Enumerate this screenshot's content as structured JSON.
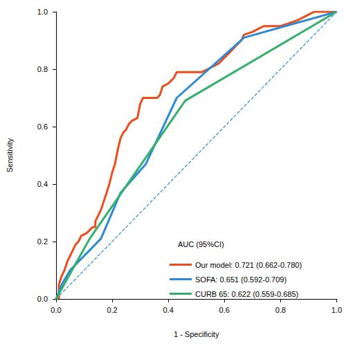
{
  "chart_data": {
    "type": "line",
    "x_label": "1 - Specificity",
    "y_label": "Sensitivity",
    "legend_title": "AUC (95%CI)",
    "legend": "lower right",
    "grid": false,
    "xlim": [
      0,
      1
    ],
    "ylim": [
      0,
      1
    ],
    "xticks": [
      {
        "value": 0,
        "label": "0.0"
      },
      0.2,
      0.4,
      0.6,
      0.8,
      {
        "value": 1,
        "label": "1.0"
      }
    ],
    "yticks": [
      {
        "value": 0,
        "label": "0.0"
      },
      0.2,
      0.4,
      0.6,
      0.8,
      {
        "value": 1,
        "label": "1.0"
      }
    ],
    "reference_line": {
      "x": [
        0,
        1
      ],
      "y": [
        0,
        1
      ],
      "color": "#2a8ad8",
      "line_style": "dashed"
    },
    "series": [
      {
        "name": "Our model: 0.721 (0.662-0.780)",
        "color": "#ee4a1b",
        "line_style": "solid",
        "x": [
          0.01,
          0.01,
          0.02,
          0.03,
          0.04,
          0.05,
          0.06,
          0.07,
          0.08,
          0.09,
          0.11,
          0.12,
          0.13,
          0.14,
          0.14,
          0.15,
          0.16,
          0.17,
          0.18,
          0.19,
          0.2,
          0.21,
          0.22,
          0.23,
          0.24,
          0.25,
          0.26,
          0.27,
          0.29,
          0.3,
          0.31,
          0.36,
          0.37,
          0.38,
          0.4,
          0.41,
          0.42,
          0.43,
          0.52,
          0.54,
          0.56,
          0.58,
          0.59,
          0.6,
          0.62,
          0.63,
          0.64,
          0.66,
          0.67,
          0.7,
          0.72,
          0.74,
          0.8,
          0.83,
          0.86,
          0.88,
          0.9,
          0.92,
          1.0
        ],
        "values": [
          0.0,
          0.05,
          0.08,
          0.1,
          0.13,
          0.15,
          0.17,
          0.19,
          0.2,
          0.22,
          0.23,
          0.24,
          0.25,
          0.25,
          0.27,
          0.29,
          0.31,
          0.34,
          0.37,
          0.4,
          0.44,
          0.47,
          0.52,
          0.56,
          0.58,
          0.59,
          0.61,
          0.62,
          0.63,
          0.68,
          0.7,
          0.7,
          0.71,
          0.74,
          0.75,
          0.76,
          0.77,
          0.79,
          0.79,
          0.8,
          0.81,
          0.82,
          0.83,
          0.84,
          0.86,
          0.87,
          0.88,
          0.9,
          0.92,
          0.93,
          0.94,
          0.95,
          0.95,
          0.96,
          0.97,
          0.98,
          0.99,
          1.0,
          1.0
        ]
      },
      {
        "name": "SOFA: 0.651 (0.592-0.709)",
        "color": "#2a8ad8",
        "line_style": "solid",
        "x": [
          0.0,
          0.02,
          0.05,
          0.16,
          0.23,
          0.32,
          0.43,
          0.67,
          1.0
        ],
        "values": [
          0.0,
          0.05,
          0.1,
          0.21,
          0.37,
          0.47,
          0.7,
          0.91,
          1.0
        ]
      },
      {
        "name": "CURB 65: 0.622 (0.559-0.685)",
        "color": "#33b06a",
        "line_style": "solid",
        "x": [
          0.0,
          0.12,
          0.46,
          1.0
        ],
        "values": [
          0.0,
          0.21,
          0.69,
          1.0
        ]
      }
    ]
  }
}
